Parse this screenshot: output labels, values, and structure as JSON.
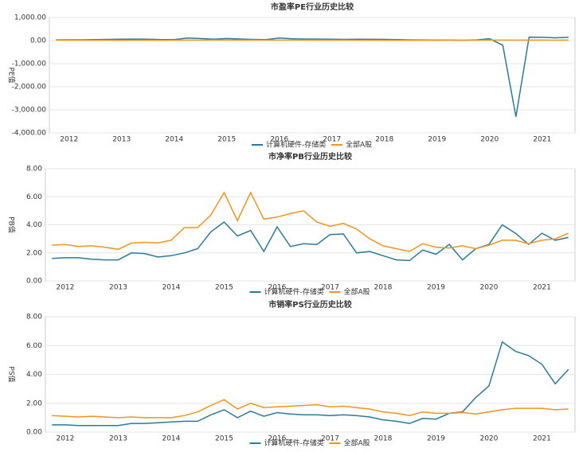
{
  "chart_data": [
    {
      "type": "line",
      "title": "市盈率PE行业历史比较",
      "y_label": "PE值",
      "categories": [
        null,
        "2012",
        null,
        null,
        null,
        "2013",
        null,
        null,
        null,
        "2014",
        null,
        null,
        null,
        "2015",
        null,
        null,
        null,
        "2016",
        null,
        null,
        null,
        "2017",
        null,
        null,
        null,
        "2018",
        null,
        null,
        null,
        "2019",
        null,
        null,
        null,
        "2020",
        null,
        null,
        null,
        "2021",
        null,
        null
      ],
      "ylim": [
        -4000,
        1000
      ],
      "yticks": [
        {
          "value": -4000,
          "label": "-4,000.00"
        },
        {
          "value": -3000,
          "label": "-3,000.00"
        },
        {
          "value": -2000,
          "label": "-2,000.00"
        },
        {
          "value": -1000,
          "label": "-1,000.00"
        },
        {
          "value": 0,
          "label": "0.00"
        },
        {
          "value": 1000,
          "label": "1,000.00"
        }
      ],
      "grid": true,
      "series": [
        {
          "name": "计算机硬件-存储类",
          "color": "#2b7a9b",
          "values": [
            30,
            35,
            35,
            40,
            50,
            60,
            65,
            60,
            45,
            40,
            110,
            90,
            60,
            90,
            70,
            50,
            40,
            110,
            80,
            70,
            65,
            60,
            50,
            60,
            55,
            50,
            40,
            30,
            25,
            20,
            20,
            15,
            30,
            80,
            -200,
            -3300,
            150,
            140,
            120,
            140
          ]
        },
        {
          "name": "全部A股",
          "color": "#f0951e",
          "values": [
            18,
            18,
            17,
            17,
            16,
            15,
            16,
            16,
            15,
            16,
            20,
            22,
            28,
            30,
            22,
            25,
            22,
            22,
            21,
            21,
            20,
            19,
            19,
            18,
            17,
            15,
            14,
            13,
            15,
            15,
            16,
            16,
            17,
            19,
            20,
            21,
            20,
            19,
            18,
            19
          ]
        }
      ]
    },
    {
      "type": "line",
      "title": "市净率PB行业历史比较",
      "y_label": "PB值",
      "categories": [
        null,
        "2012",
        null,
        null,
        null,
        "2013",
        null,
        null,
        null,
        "2014",
        null,
        null,
        null,
        "2015",
        null,
        null,
        null,
        "2016",
        null,
        null,
        null,
        "2017",
        null,
        null,
        null,
        "2018",
        null,
        null,
        null,
        "2019",
        null,
        null,
        null,
        "2020",
        null,
        null,
        null,
        "2021",
        null,
        null
      ],
      "ylim": [
        0,
        8
      ],
      "yticks": [
        {
          "value": 0,
          "label": "0.00"
        },
        {
          "value": 2,
          "label": "2.00"
        },
        {
          "value": 4,
          "label": "4.00"
        },
        {
          "value": 6,
          "label": "6.00"
        },
        {
          "value": 8,
          "label": "8.00"
        }
      ],
      "grid": true,
      "series": [
        {
          "name": "计算机硬件-存储类",
          "color": "#2b7a9b",
          "values": [
            1.6,
            1.65,
            1.65,
            1.55,
            1.5,
            1.5,
            2.0,
            1.95,
            1.7,
            1.8,
            2.0,
            2.3,
            3.5,
            4.2,
            3.2,
            3.6,
            2.1,
            3.85,
            2.45,
            2.65,
            2.6,
            3.3,
            3.35,
            2.0,
            2.1,
            1.8,
            1.5,
            1.45,
            2.2,
            1.9,
            2.6,
            1.5,
            2.3,
            2.6,
            4.0,
            3.4,
            2.6,
            3.4,
            2.9,
            3.1
          ]
        },
        {
          "name": "全部A股",
          "color": "#f0951e",
          "values": [
            2.55,
            2.6,
            2.45,
            2.5,
            2.4,
            2.25,
            2.7,
            2.75,
            2.7,
            2.9,
            3.8,
            3.8,
            4.7,
            6.3,
            4.3,
            6.3,
            4.4,
            4.55,
            4.8,
            5.0,
            4.2,
            3.9,
            4.1,
            3.7,
            3.0,
            2.5,
            2.3,
            2.1,
            2.65,
            2.4,
            2.35,
            2.5,
            2.3,
            2.55,
            2.9,
            2.9,
            2.65,
            2.9,
            3.0,
            3.4
          ]
        }
      ]
    },
    {
      "type": "line",
      "title": "市销率PS行业历史比较",
      "y_label": "PS值",
      "categories": [
        null,
        "2012",
        null,
        null,
        null,
        "2013",
        null,
        null,
        null,
        "2014",
        null,
        null,
        null,
        "2015",
        null,
        null,
        null,
        "2016",
        null,
        null,
        null,
        "2017",
        null,
        null,
        null,
        "2018",
        null,
        null,
        null,
        "2019",
        null,
        null,
        null,
        "2020",
        null,
        null,
        null,
        "2021",
        null,
        null
      ],
      "ylim": [
        0,
        8
      ],
      "yticks": [
        {
          "value": 0,
          "label": "0.00"
        },
        {
          "value": 2,
          "label": "2.00"
        },
        {
          "value": 4,
          "label": "4.00"
        },
        {
          "value": 6,
          "label": "6.00"
        },
        {
          "value": 8,
          "label": "8.00"
        }
      ],
      "grid": true,
      "series": [
        {
          "name": "计算机硬件-存储类",
          "color": "#2b7a9b",
          "values": [
            0.5,
            0.5,
            0.45,
            0.45,
            0.45,
            0.45,
            0.6,
            0.6,
            0.65,
            0.7,
            0.75,
            0.75,
            1.2,
            1.55,
            1.0,
            1.45,
            1.1,
            1.35,
            1.25,
            1.2,
            1.2,
            1.15,
            1.2,
            1.15,
            1.05,
            0.85,
            0.75,
            0.6,
            0.95,
            0.9,
            1.3,
            1.4,
            2.4,
            3.2,
            6.25,
            5.6,
            5.3,
            4.7,
            3.35,
            4.35
          ]
        },
        {
          "name": "全部A股",
          "color": "#f0951e",
          "values": [
            1.15,
            1.1,
            1.05,
            1.1,
            1.05,
            1.0,
            1.05,
            1.0,
            1.0,
            1.0,
            1.15,
            1.4,
            1.85,
            2.25,
            1.6,
            2.0,
            1.7,
            1.75,
            1.8,
            1.85,
            1.9,
            1.75,
            1.8,
            1.7,
            1.6,
            1.4,
            1.3,
            1.15,
            1.4,
            1.3,
            1.3,
            1.35,
            1.25,
            1.4,
            1.55,
            1.65,
            1.65,
            1.65,
            1.55,
            1.6
          ]
        }
      ]
    }
  ]
}
